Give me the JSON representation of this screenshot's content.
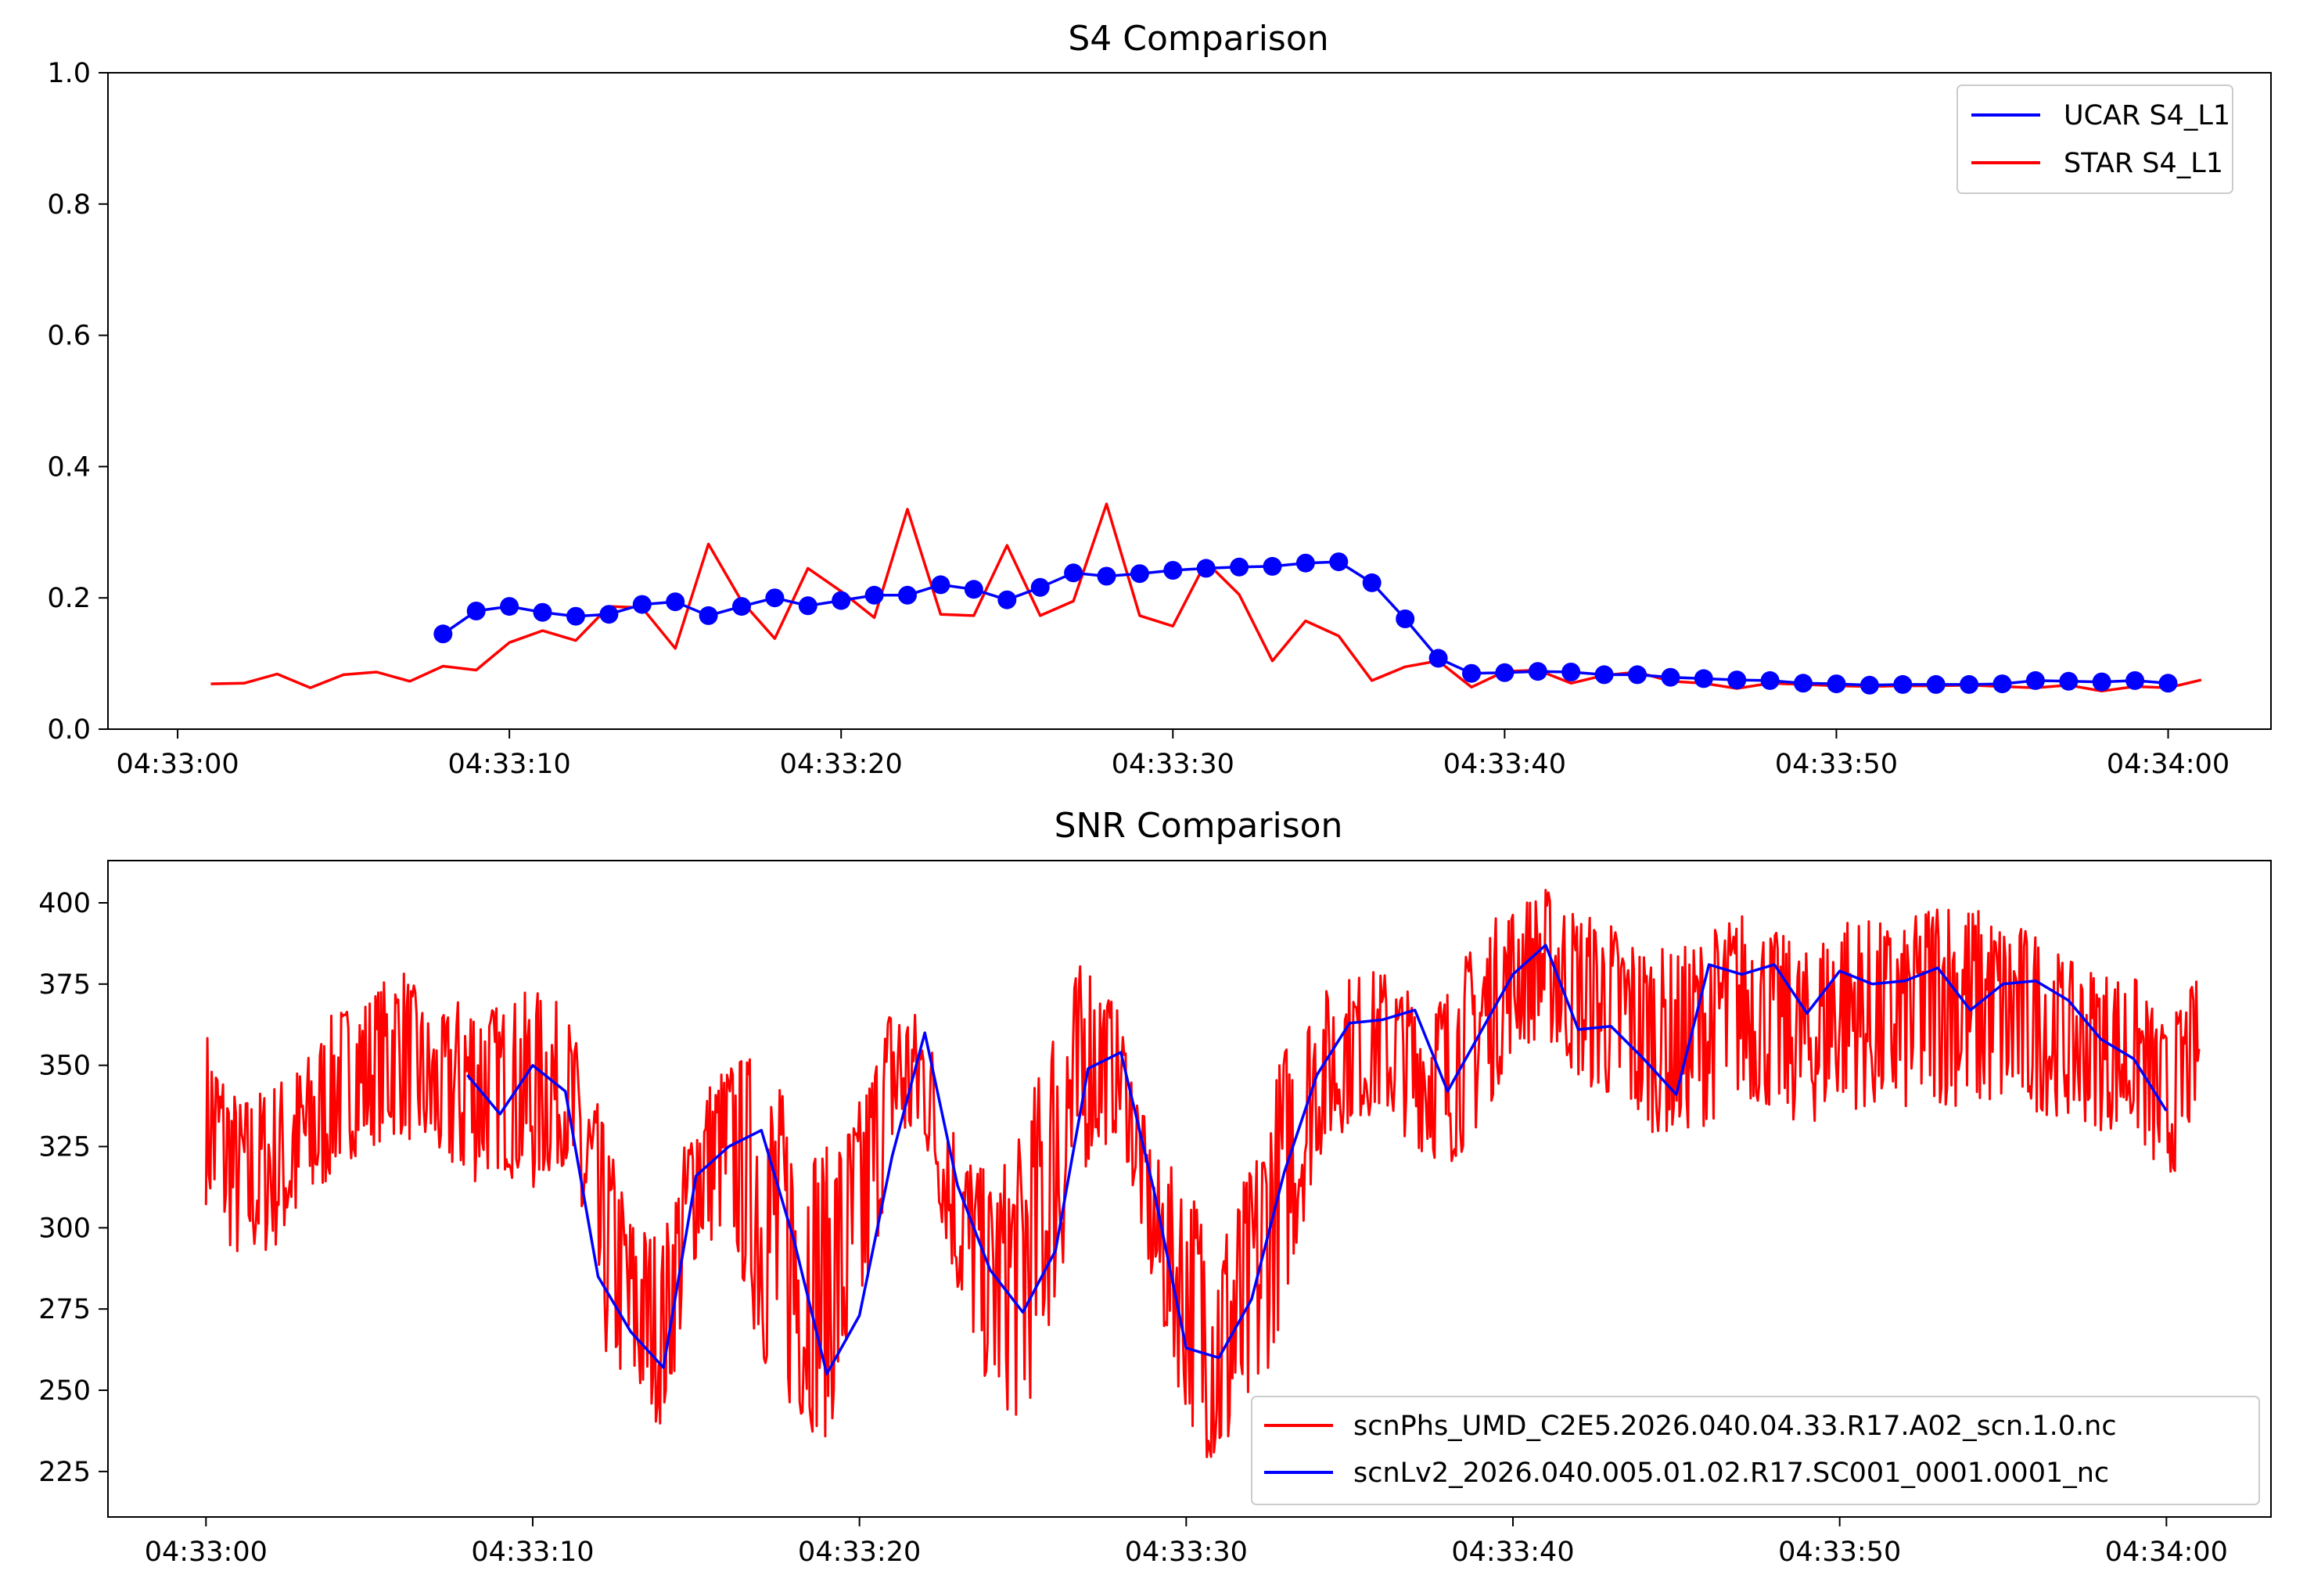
{
  "chart_data": [
    {
      "type": "line",
      "title": "S4 Comparison",
      "xlabel": "",
      "ylabel": "",
      "x_unit": "seconds after 04:33:00",
      "xlim": [
        -2.1,
        63.1
      ],
      "ylim": [
        0.0,
        1.0
      ],
      "grid": false,
      "legend_position": "top-right",
      "x_ticks": [
        {
          "value": 0,
          "label": "04:33:00"
        },
        {
          "value": 10,
          "label": "04:33:10"
        },
        {
          "value": 20,
          "label": "04:33:20"
        },
        {
          "value": 30,
          "label": "04:33:30"
        },
        {
          "value": 40,
          "label": "04:33:40"
        },
        {
          "value": 50,
          "label": "04:33:50"
        },
        {
          "value": 60,
          "label": "04:34:00"
        }
      ],
      "y_ticks": [
        {
          "value": 0.0,
          "label": "0.0"
        },
        {
          "value": 0.2,
          "label": "0.2"
        },
        {
          "value": 0.4,
          "label": "0.4"
        },
        {
          "value": 0.6,
          "label": "0.6"
        },
        {
          "value": 0.8,
          "label": "0.8"
        },
        {
          "value": 1.0,
          "label": "1.0"
        }
      ],
      "series": [
        {
          "name": "UCAR S4_L1",
          "color": "#0000ff",
          "marker": "circle",
          "x": [
            8,
            9,
            10,
            11,
            12,
            13,
            14,
            15,
            16,
            17,
            18,
            19,
            20,
            21,
            22,
            23,
            24,
            25,
            26,
            27,
            28,
            29,
            30,
            31,
            32,
            33,
            34,
            35,
            36,
            37,
            38,
            39,
            40,
            41,
            42,
            43,
            44,
            45,
            46,
            47,
            48,
            49,
            50,
            51,
            52,
            53,
            54,
            55,
            56,
            57,
            58,
            59,
            60
          ],
          "values": [
            0.145,
            0.18,
            0.187,
            0.178,
            0.172,
            0.175,
            0.19,
            0.194,
            0.173,
            0.187,
            0.2,
            0.188,
            0.196,
            0.204,
            0.204,
            0.22,
            0.213,
            0.197,
            0.216,
            0.238,
            0.233,
            0.237,
            0.242,
            0.245,
            0.247,
            0.248,
            0.253,
            0.255,
            0.223,
            0.168,
            0.108,
            0.085,
            0.086,
            0.088,
            0.087,
            0.083,
            0.083,
            0.079,
            0.077,
            0.075,
            0.074,
            0.07,
            0.069,
            0.067,
            0.068,
            0.068,
            0.068,
            0.069,
            0.074,
            0.073,
            0.072,
            0.074,
            0.07
          ]
        },
        {
          "name": "STAR S4_L1",
          "color": "#ff0000",
          "marker": "none",
          "x": [
            1,
            2,
            3,
            4,
            5,
            6,
            7,
            8,
            9,
            10,
            11,
            12,
            13,
            14,
            15,
            16,
            17,
            18,
            19,
            20,
            21,
            22,
            23,
            24,
            25,
            26,
            27,
            28,
            29,
            30,
            31,
            32,
            33,
            34,
            35,
            36,
            37,
            38,
            39,
            40,
            41,
            42,
            43,
            44,
            45,
            46,
            47,
            48,
            49,
            50,
            51,
            52,
            53,
            54,
            55,
            56,
            57,
            58,
            59,
            60,
            61
          ],
          "values": [
            0.069,
            0.07,
            0.084,
            0.063,
            0.083,
            0.087,
            0.073,
            0.096,
            0.09,
            0.132,
            0.15,
            0.135,
            0.187,
            0.185,
            0.123,
            0.282,
            0.195,
            0.138,
            0.245,
            0.21,
            0.17,
            0.335,
            0.175,
            0.173,
            0.28,
            0.173,
            0.195,
            0.343,
            0.173,
            0.157,
            0.255,
            0.205,
            0.104,
            0.165,
            0.142,
            0.074,
            0.095,
            0.104,
            0.064,
            0.088,
            0.09,
            0.07,
            0.082,
            0.087,
            0.073,
            0.07,
            0.062,
            0.07,
            0.068,
            0.066,
            0.065,
            0.066,
            0.066,
            0.067,
            0.065,
            0.063,
            0.067,
            0.058,
            0.065,
            0.063,
            0.075
          ]
        }
      ]
    },
    {
      "type": "line",
      "title": "SNR Comparison",
      "xlabel": "",
      "ylabel": "",
      "x_unit": "seconds after 04:33:00",
      "xlim": [
        -3.0,
        63.2
      ],
      "ylim": [
        211.0,
        413.0
      ],
      "grid": false,
      "legend_position": "bottom-right",
      "x_ticks": [
        {
          "value": 0,
          "label": "04:33:00"
        },
        {
          "value": 10,
          "label": "04:33:10"
        },
        {
          "value": 20,
          "label": "04:33:20"
        },
        {
          "value": 30,
          "label": "04:33:30"
        },
        {
          "value": 40,
          "label": "04:33:40"
        },
        {
          "value": 50,
          "label": "04:33:50"
        },
        {
          "value": 60,
          "label": "04:34:00"
        }
      ],
      "y_ticks": [
        {
          "value": 225,
          "label": "225"
        },
        {
          "value": 250,
          "label": "250"
        },
        {
          "value": 275,
          "label": "275"
        },
        {
          "value": 300,
          "label": "300"
        },
        {
          "value": 325,
          "label": "325"
        },
        {
          "value": 350,
          "label": "350"
        },
        {
          "value": 375,
          "label": "375"
        },
        {
          "value": 400,
          "label": "400"
        }
      ],
      "series": [
        {
          "name": "scnPhs_UMD_C2E5.2026.040.04.33.R17.A02_scn.1.0.nc",
          "color": "#ff0000",
          "sampling": "high-rate noisy samples between the envelope below",
          "x": [
            0,
            1,
            2,
            3,
            4,
            5,
            6,
            7,
            8,
            9,
            10,
            11,
            12,
            13,
            14,
            15,
            16,
            17,
            18,
            19,
            20,
            21,
            22,
            23,
            24,
            25,
            26,
            27,
            28,
            29,
            30,
            31,
            32,
            33,
            34,
            35,
            36,
            37,
            38,
            39,
            40,
            41,
            42,
            43,
            44,
            45,
            46,
            47,
            48,
            49,
            50,
            51,
            52,
            53,
            54,
            55,
            56,
            57,
            58,
            59,
            60,
            61
          ],
          "min_values": [
            307,
            288,
            292,
            300,
            318,
            325,
            328,
            320,
            312,
            318,
            310,
            320,
            262,
            248,
            238,
            290,
            300,
            258,
            240,
            235,
            262,
            322,
            325,
            278,
            248,
            238,
            275,
            320,
            330,
            278,
            242,
            222,
            238,
            275,
            320,
            332,
            335,
            325,
            318,
            330,
            355,
            358,
            345,
            338,
            330,
            328,
            332,
            340,
            335,
            330,
            338,
            335,
            335,
            338,
            336,
            336,
            335,
            334,
            330,
            330,
            310,
            338
          ],
          "max_values": [
            362,
            340,
            345,
            352,
            368,
            372,
            382,
            362,
            375,
            368,
            374,
            368,
            338,
            305,
            298,
            342,
            352,
            355,
            336,
            325,
            340,
            372,
            365,
            330,
            315,
            330,
            370,
            385,
            365,
            322,
            316,
            300,
            320,
            358,
            372,
            378,
            380,
            372,
            375,
            392,
            400,
            405,
            398,
            395,
            388,
            385,
            392,
            398,
            392,
            385,
            398,
            395,
            392,
            405,
            400,
            395,
            392,
            382,
            380,
            378,
            362,
            378
          ]
        },
        {
          "name": "scnLv2_2026.040.005.01.02.R17.SC001_0001.0001_nc",
          "color": "#0000ff",
          "x": [
            8,
            9,
            10,
            11,
            12,
            13,
            14,
            15,
            16,
            17,
            18,
            19,
            20,
            21,
            22,
            23,
            24,
            25,
            26,
            27,
            28,
            29,
            30,
            31,
            32,
            33,
            34,
            35,
            36,
            37,
            38,
            39,
            40,
            41,
            42,
            43,
            44,
            45,
            46,
            47,
            48,
            49,
            50,
            51,
            52,
            53,
            54,
            55,
            56,
            57,
            58,
            59,
            60
          ],
          "values": [
            347,
            335,
            350,
            342,
            285,
            268,
            257,
            316,
            325,
            330,
            296,
            255,
            273,
            322,
            360,
            313,
            287,
            274,
            293,
            349,
            354,
            312,
            263,
            260,
            278,
            317,
            347,
            363,
            364,
            367,
            342,
            360,
            378,
            387,
            361,
            362,
            352,
            341,
            381,
            378,
            381,
            366,
            379,
            375,
            376,
            380,
            367,
            375,
            376,
            370,
            358,
            352,
            336
          ]
        }
      ]
    }
  ]
}
